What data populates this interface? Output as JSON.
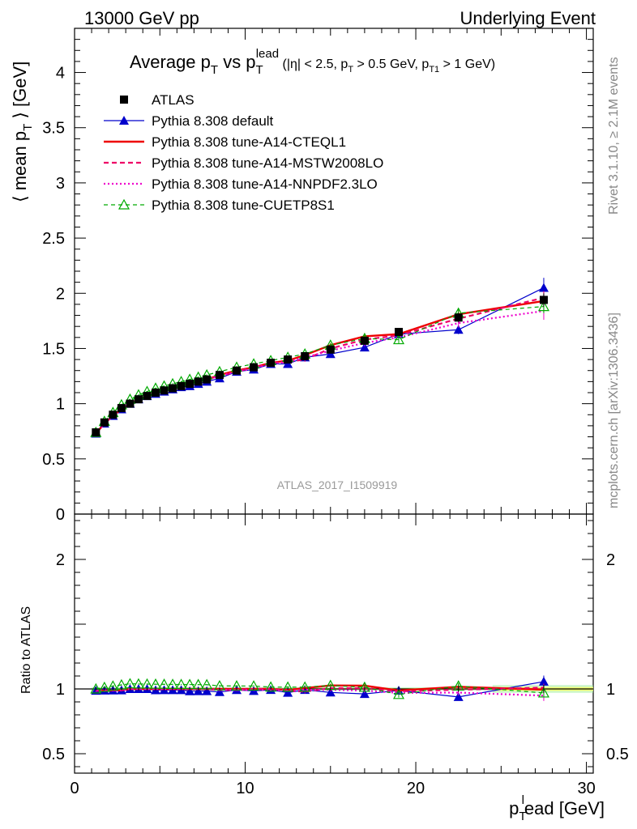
{
  "header": {
    "left": "13000 GeV pp",
    "right": "Underlying Event"
  },
  "side_labels": {
    "rivet": "Rivet 3.1.10, ≥ 2.1M events",
    "mcplots": "mcplots.cern.ch [arXiv:1306.3436]"
  },
  "watermark": "ATLAS_2017_I1509919",
  "title": {
    "main": "Average p",
    "main_sub": "T",
    "vs": " vs p",
    "vs_sub": "T",
    "vs_sup": "lead",
    "cuts_pre": " (|η| < 2.5, p",
    "cuts_sub1": "T",
    "cuts_mid": " > 0.5 GeV, p",
    "cuts_sub2": "T1",
    "cuts_post": " > 1 GeV)"
  },
  "ylabel_main": {
    "pre": "⟨ mean p",
    "sub": "T",
    "post": " ⟩ [GeV]"
  },
  "ylabel_ratio": "Ratio to ATLAS",
  "xlabel": {
    "pre": "p",
    "sub": "T",
    "sup": "l",
    "post": "ead [GeV]"
  },
  "colors": {
    "atlas": "#000000",
    "default": "#0000cc",
    "cteql1": "#ee0000",
    "mstw": "#ee0066",
    "nnpdf": "#ee00cc",
    "cuetp": "#00aa00",
    "band_inner": "#ffff66",
    "band_outer": "#99ee99"
  },
  "chart_data": {
    "type": "line",
    "x": [
      1.25,
      1.75,
      2.25,
      2.75,
      3.25,
      3.75,
      4.25,
      4.75,
      5.25,
      5.75,
      6.25,
      6.75,
      7.25,
      7.75,
      8.5,
      9.5,
      10.5,
      11.5,
      12.5,
      13.5,
      15.0,
      17.0,
      19.0,
      22.5,
      27.5
    ],
    "xlim": [
      0,
      30.4
    ],
    "ylim_main": [
      0,
      4.4
    ],
    "ylim_ratio": [
      0.35,
      2.35
    ],
    "x_ticks": [
      0,
      10,
      20,
      30
    ],
    "y_ticks_main": [
      0,
      0.5,
      1,
      1.5,
      2,
      2.5,
      3,
      3.5,
      4
    ],
    "y_ticks_ratio": [
      0.5,
      1,
      2
    ],
    "y_tick_labels_main": [
      "0",
      "0.5",
      "1",
      "1.5",
      "2",
      "2.5",
      "3",
      "3.5",
      "4"
    ],
    "y_tick_labels_ratio": [
      "0.5",
      "1",
      "2"
    ],
    "x_tick_labels": [
      "0",
      "10",
      "20",
      "30"
    ],
    "legend_position": "top-left",
    "series": [
      {
        "name": "ATLAS",
        "key": "atlas",
        "values": [
          0.74,
          0.83,
          0.9,
          0.96,
          1.0,
          1.04,
          1.07,
          1.1,
          1.12,
          1.14,
          1.16,
          1.18,
          1.2,
          1.22,
          1.26,
          1.3,
          1.33,
          1.37,
          1.4,
          1.43,
          1.49,
          1.57,
          1.65,
          1.78,
          1.94
        ],
        "errors": [
          0.01,
          0.01,
          0.01,
          0.01,
          0.01,
          0.01,
          0.01,
          0.01,
          0.01,
          0.01,
          0.01,
          0.01,
          0.01,
          0.01,
          0.01,
          0.01,
          0.01,
          0.01,
          0.01,
          0.01,
          0.02,
          0.02,
          0.03,
          0.04,
          0.06
        ]
      },
      {
        "name": "Pythia 8.308 default",
        "key": "default",
        "values": [
          0.73,
          0.82,
          0.89,
          0.95,
          1.0,
          1.04,
          1.07,
          1.09,
          1.11,
          1.13,
          1.15,
          1.16,
          1.18,
          1.2,
          1.23,
          1.29,
          1.31,
          1.36,
          1.36,
          1.42,
          1.45,
          1.51,
          1.63,
          1.67,
          2.05
        ],
        "errors": [
          0.005,
          0.005,
          0.005,
          0.005,
          0.005,
          0.005,
          0.005,
          0.005,
          0.005,
          0.005,
          0.005,
          0.005,
          0.005,
          0.005,
          0.01,
          0.01,
          0.01,
          0.01,
          0.01,
          0.02,
          0.02,
          0.03,
          0.04,
          0.04,
          0.09
        ]
      },
      {
        "name": "Pythia 8.308 tune-A14-CTEQL1",
        "key": "cteql1",
        "values": [
          0.73,
          0.82,
          0.89,
          0.95,
          1.0,
          1.04,
          1.07,
          1.1,
          1.12,
          1.14,
          1.16,
          1.18,
          1.2,
          1.22,
          1.26,
          1.3,
          1.33,
          1.37,
          1.39,
          1.44,
          1.53,
          1.61,
          1.63,
          1.81,
          1.93
        ],
        "errors": [
          0.005,
          0.005,
          0.005,
          0.005,
          0.005,
          0.005,
          0.005,
          0.005,
          0.005,
          0.005,
          0.005,
          0.005,
          0.005,
          0.005,
          0.01,
          0.01,
          0.01,
          0.01,
          0.01,
          0.02,
          0.02,
          0.03,
          0.04,
          0.04,
          0.06
        ]
      },
      {
        "name": "Pythia 8.308 tune-A14-MSTW2008LO",
        "key": "mstw",
        "values": [
          0.73,
          0.82,
          0.89,
          0.95,
          1.0,
          1.04,
          1.07,
          1.1,
          1.12,
          1.14,
          1.16,
          1.18,
          1.2,
          1.22,
          1.25,
          1.29,
          1.33,
          1.37,
          1.38,
          1.4,
          1.5,
          1.58,
          1.62,
          1.77,
          1.96
        ],
        "errors": [
          0.005,
          0.005,
          0.005,
          0.005,
          0.005,
          0.005,
          0.005,
          0.005,
          0.005,
          0.005,
          0.005,
          0.005,
          0.005,
          0.005,
          0.01,
          0.01,
          0.01,
          0.01,
          0.01,
          0.02,
          0.02,
          0.03,
          0.04,
          0.04,
          0.06
        ]
      },
      {
        "name": "Pythia 8.308 tune-A14-NNPDF2.3LO",
        "key": "nnpdf",
        "values": [
          0.73,
          0.82,
          0.89,
          0.95,
          1.0,
          1.04,
          1.07,
          1.1,
          1.12,
          1.14,
          1.16,
          1.18,
          1.2,
          1.22,
          1.25,
          1.29,
          1.32,
          1.36,
          1.38,
          1.42,
          1.48,
          1.55,
          1.6,
          1.73,
          1.84
        ],
        "errors": [
          0.005,
          0.005,
          0.005,
          0.005,
          0.005,
          0.005,
          0.005,
          0.005,
          0.005,
          0.005,
          0.005,
          0.005,
          0.005,
          0.005,
          0.01,
          0.01,
          0.01,
          0.01,
          0.01,
          0.02,
          0.02,
          0.03,
          0.04,
          0.04,
          0.08
        ]
      },
      {
        "name": "Pythia 8.308 tune-CUETP8S1",
        "key": "cuetp",
        "values": [
          0.74,
          0.84,
          0.92,
          0.99,
          1.04,
          1.08,
          1.11,
          1.14,
          1.16,
          1.18,
          1.2,
          1.22,
          1.24,
          1.26,
          1.29,
          1.33,
          1.36,
          1.39,
          1.42,
          1.45,
          1.53,
          1.59,
          1.58,
          1.82,
          1.88
        ],
        "errors": [
          0.005,
          0.005,
          0.005,
          0.005,
          0.005,
          0.005,
          0.005,
          0.005,
          0.005,
          0.005,
          0.005,
          0.005,
          0.005,
          0.005,
          0.01,
          0.01,
          0.01,
          0.01,
          0.01,
          0.02,
          0.02,
          0.03,
          0.04,
          0.04,
          0.06
        ]
      }
    ]
  }
}
